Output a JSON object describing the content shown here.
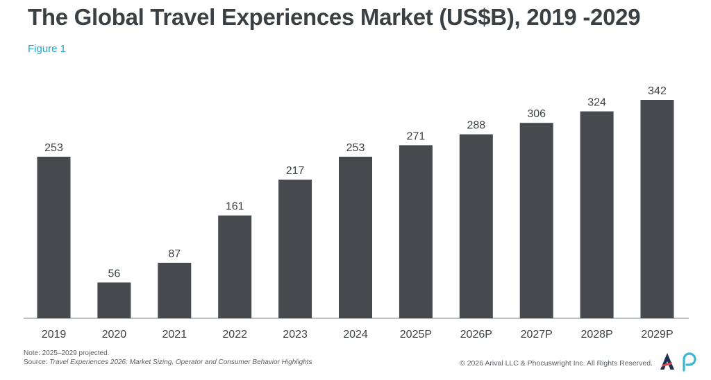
{
  "header": {
    "title": "The Global Travel Experiences Market (US$B), 2019 -2029",
    "figure_label": "Figure 1"
  },
  "footer": {
    "note": "Note: 2025–2029 projected.",
    "source_prefix": "Source: ",
    "source_title": "Travel Experiences 2026: Market Sizing, Operator and Consumer Behavior Highlights",
    "copyright": "© 2026 Arival LLC & Phocuswright Inc. All Rights Reserved."
  },
  "colors": {
    "bar": "#464a4f",
    "title": "#3b4044",
    "figure_label": "#2aa3c4",
    "logo_a_navy": "#1f2f4f",
    "logo_a_red": "#e0474c",
    "logo_p_teal": "#3cb6d3"
  },
  "chart_data": {
    "type": "bar",
    "title": "The Global Travel Experiences Market (US$B), 2019 -2029",
    "categories": [
      "2019",
      "2020",
      "2021",
      "2022",
      "2023",
      "2024",
      "2025P",
      "2026P",
      "2027P",
      "2028P",
      "2029P"
    ],
    "values": [
      253,
      56,
      87,
      161,
      217,
      253,
      271,
      288,
      306,
      324,
      342
    ],
    "data_labels": [
      "253",
      "56",
      "87",
      "161",
      "217",
      "253",
      "271",
      "288",
      "306",
      "324",
      "342"
    ],
    "xlabel": "",
    "ylabel": "",
    "ylim": [
      0,
      342
    ],
    "grid": false,
    "legend": "none"
  }
}
